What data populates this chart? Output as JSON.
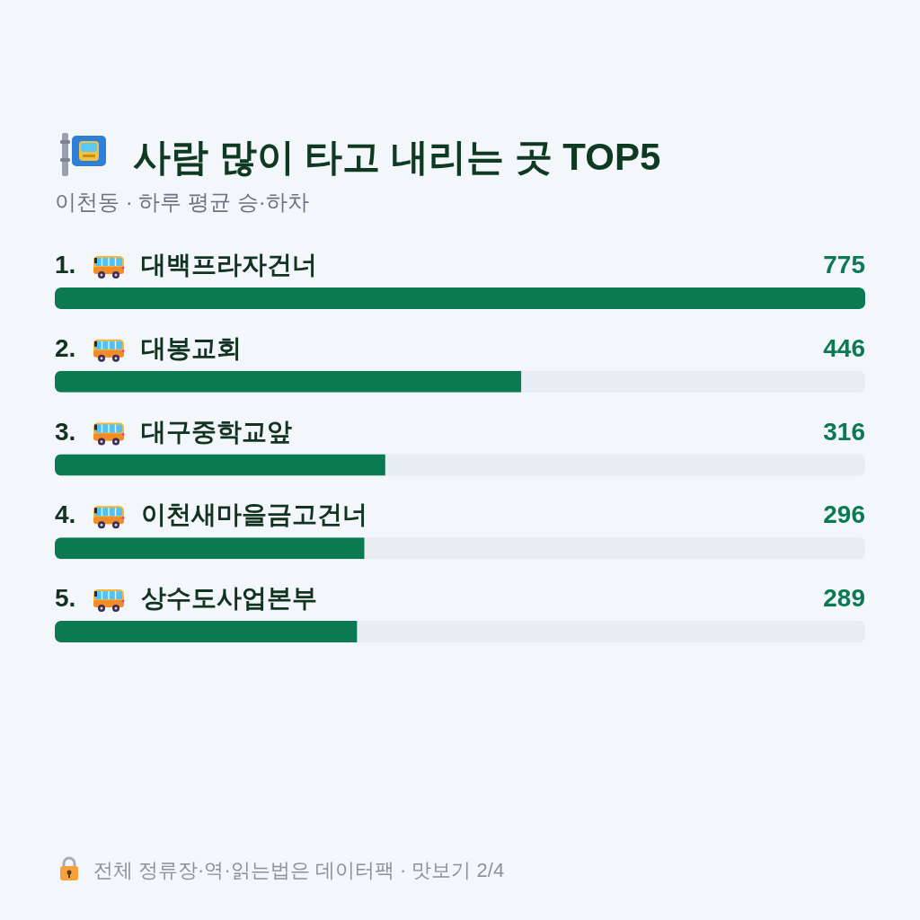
{
  "chart_data": {
    "type": "bar",
    "orientation": "horizontal",
    "title": "사람 많이 타고 내리는 곳 TOP5",
    "subtitle": "이천동 · 하루 평균 승·하차",
    "categories": [
      "1. 대백프라자건너",
      "2. 대봉교회",
      "3. 대구중학교앞",
      "4. 이천새마을금고건너",
      "5. 상수도사업본부"
    ],
    "values": [
      775,
      446,
      316,
      296,
      289
    ],
    "color": "#0b7a52",
    "xlim": [
      0,
      775
    ],
    "tick_labels": "y",
    "data_labels": true,
    "annotations": [
      "전체 정류장·역·읽는법은 데이터팩 · 맛보기 2/4"
    ]
  }
}
